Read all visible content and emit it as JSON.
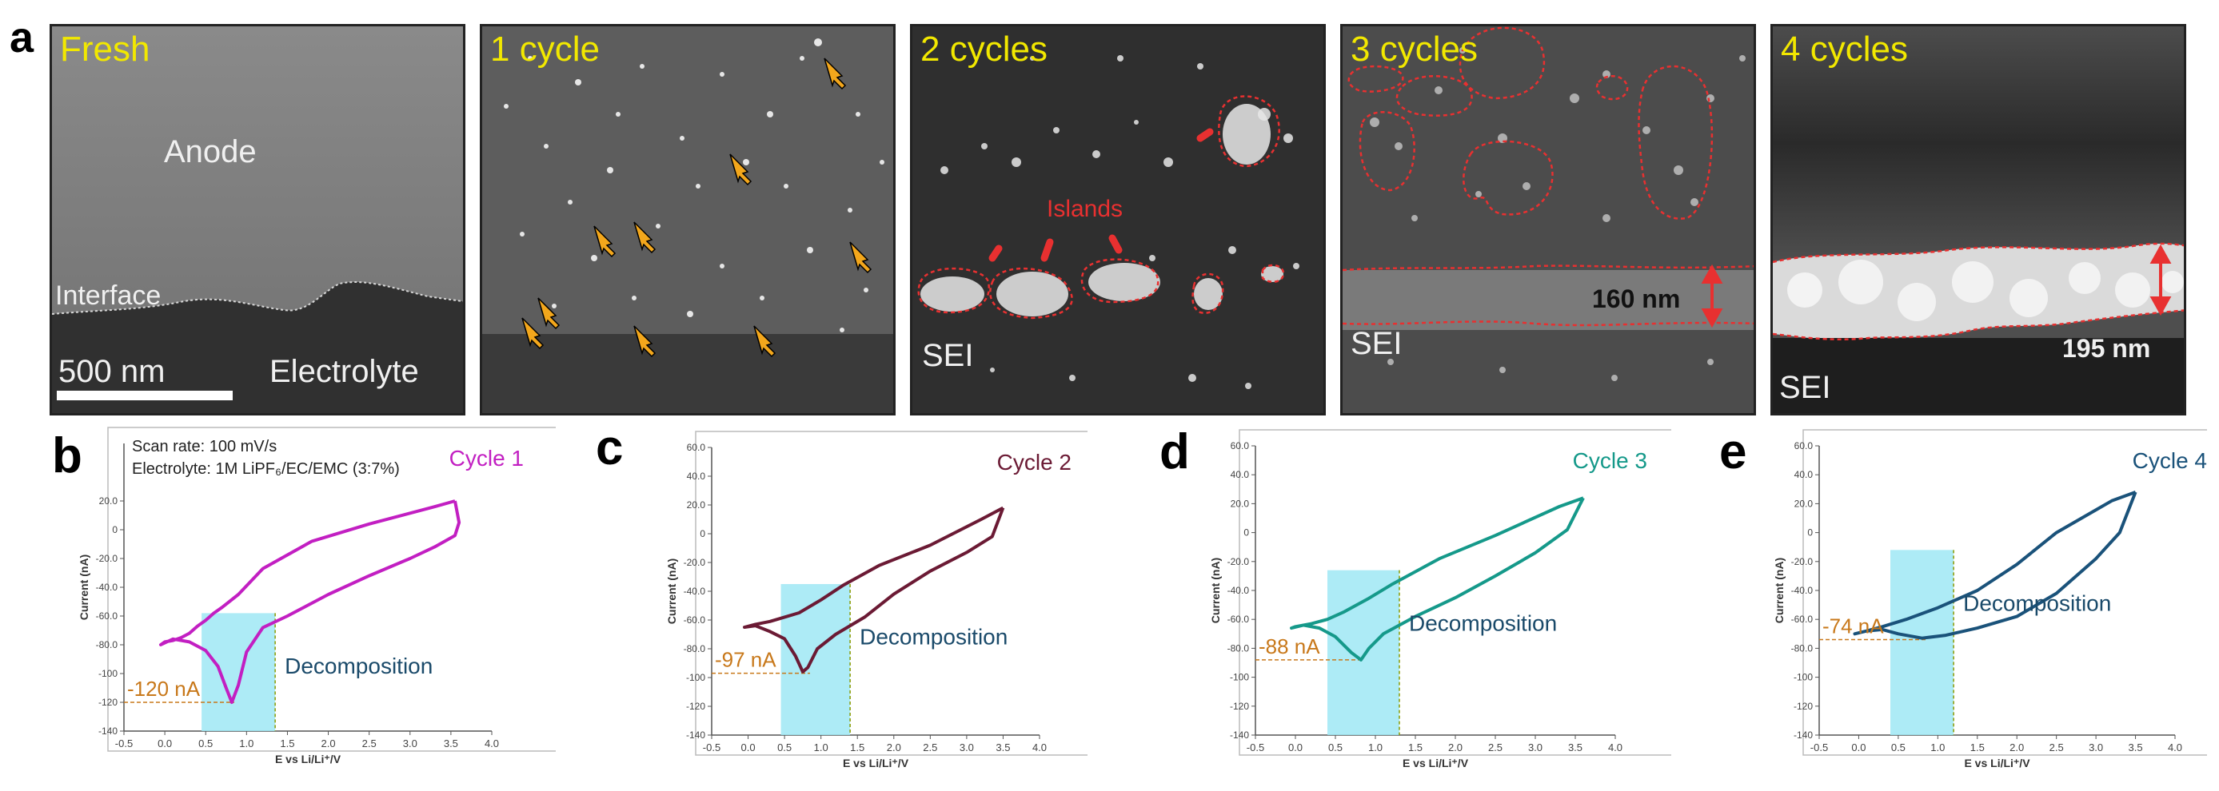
{
  "figure": {
    "panel_a_label": "a",
    "panel_b_label": "b",
    "panel_c_label": "c",
    "panel_d_label": "d",
    "panel_e_label": "e"
  },
  "tem_panels": [
    {
      "title": "Fresh",
      "anode": "Anode",
      "interface": "Interface",
      "electrolyte": "Electrolyte",
      "scale": "500 nm"
    },
    {
      "title": "1 cycle"
    },
    {
      "title": "2 cycles",
      "islands": "Islands",
      "sei": "SEI"
    },
    {
      "title": "3 cycles",
      "sei": "SEI",
      "thickness": "160 nm"
    },
    {
      "title": "4 cycles",
      "sei": "SEI",
      "thickness": "195 nm"
    }
  ],
  "colors": {
    "cycle1": "#c21fc2",
    "cycle2": "#6b1a34",
    "cycle3": "#15998a",
    "cycle4": "#1a527a",
    "shade": "#9fe8f5",
    "annot": "#c8781a",
    "marker": "#e83030",
    "arrow": "#f3a71c",
    "title": "#f2e800"
  },
  "chart_data": [
    {
      "type": "line",
      "title": "Cycle 1",
      "xlabel": "E vs Li/Li⁺/V",
      "ylabel": "Current (nA)",
      "xlim": [
        -0.5,
        4.0
      ],
      "ylim": [
        -140,
        60
      ],
      "x_ticks": [
        "-0.5",
        "0.0",
        "0.5",
        "1.0",
        "1.5",
        "2.0",
        "2.5",
        "3.0",
        "3.5",
        "4.0"
      ],
      "y_ticks": [
        "20.0",
        "0",
        "-20.0",
        "-40.0",
        "-60.0",
        "-80.0",
        "-100",
        "-120",
        "-140"
      ],
      "scan_rate": "Scan rate: 100 mV/s",
      "electrolyte": "Electrolyte: 1M LiPF₆/EC/EMC (3:7%)",
      "peak_label": "-120 nA",
      "region_label": "Decomposition",
      "region": [
        0.45,
        1.35
      ],
      "peak_y": -120,
      "loop": [
        [
          3.55,
          20
        ],
        [
          3.3,
          16
        ],
        [
          2.5,
          4
        ],
        [
          1.8,
          -8
        ],
        [
          1.2,
          -27
        ],
        [
          0.9,
          -45
        ],
        [
          0.7,
          -54
        ],
        [
          0.6,
          -58
        ],
        [
          0.5,
          -63
        ],
        [
          0.4,
          -67
        ],
        [
          0.3,
          -72
        ],
        [
          0.2,
          -75
        ],
        [
          0.1,
          -77
        ],
        [
          0.0,
          -78
        ],
        [
          -0.05,
          -80
        ],
        [
          0.1,
          -76
        ],
        [
          0.3,
          -78
        ],
        [
          0.5,
          -84
        ],
        [
          0.65,
          -95
        ],
        [
          0.75,
          -110
        ],
        [
          0.82,
          -120
        ],
        [
          0.9,
          -108
        ],
        [
          1.0,
          -85
        ],
        [
          1.2,
          -68
        ],
        [
          1.5,
          -60
        ],
        [
          2.0,
          -45
        ],
        [
          2.5,
          -32
        ],
        [
          3.0,
          -20
        ],
        [
          3.3,
          -12
        ],
        [
          3.55,
          -4
        ],
        [
          3.6,
          5
        ],
        [
          3.55,
          20
        ]
      ]
    },
    {
      "type": "line",
      "title": "Cycle 2",
      "xlabel": "E vs Li/Li⁺/V",
      "ylabel": "Current (nA)",
      "xlim": [
        -0.5,
        4.0
      ],
      "ylim": [
        -140,
        60
      ],
      "x_ticks": [
        "-0.5",
        "0.0",
        "0.5",
        "1.0",
        "1.5",
        "2.0",
        "2.5",
        "3.0",
        "3.5",
        "4.0"
      ],
      "y_ticks": [
        "60.0",
        "40.0",
        "20.0",
        "0",
        "-20.0",
        "-40.0",
        "-60.0",
        "-80.0",
        "-100",
        "-120",
        "-140"
      ],
      "peak_label": "-97 nA",
      "region_label": "Decomposition",
      "region": [
        0.45,
        1.4
      ],
      "peak_y": -97,
      "loop": [
        [
          3.5,
          18
        ],
        [
          3.2,
          10
        ],
        [
          2.5,
          -8
        ],
        [
          1.8,
          -22
        ],
        [
          1.3,
          -36
        ],
        [
          1.0,
          -46
        ],
        [
          0.7,
          -55
        ],
        [
          0.5,
          -58
        ],
        [
          0.3,
          -61
        ],
        [
          0.1,
          -63
        ],
        [
          -0.05,
          -65
        ],
        [
          0.1,
          -64
        ],
        [
          0.3,
          -68
        ],
        [
          0.5,
          -73
        ],
        [
          0.65,
          -85
        ],
        [
          0.75,
          -96
        ],
        [
          0.82,
          -93
        ],
        [
          0.95,
          -80
        ],
        [
          1.2,
          -70
        ],
        [
          1.6,
          -58
        ],
        [
          2.0,
          -42
        ],
        [
          2.5,
          -26
        ],
        [
          3.0,
          -13
        ],
        [
          3.35,
          -2
        ],
        [
          3.5,
          18
        ]
      ]
    },
    {
      "type": "line",
      "title": "Cycle 3",
      "xlabel": "E vs Li/Li⁺/V",
      "ylabel": "Current (nA)",
      "xlim": [
        -0.5,
        4.0
      ],
      "ylim": [
        -140,
        60
      ],
      "x_ticks": [
        "-0.5",
        "0.0",
        "0.5",
        "1.0",
        "1.5",
        "2.0",
        "2.5",
        "3.0",
        "3.5",
        "4.0"
      ],
      "y_ticks": [
        "60.0",
        "40.0",
        "20.0",
        "0",
        "-20.0",
        "-40.0",
        "-60.0",
        "-80.0",
        "-100",
        "-120",
        "-140"
      ],
      "peak_label": "-88 nA",
      "region_label": "Decomposition",
      "region": [
        0.4,
        1.3
      ],
      "peak_y": -88,
      "loop": [
        [
          3.6,
          24
        ],
        [
          3.3,
          18
        ],
        [
          2.5,
          -2
        ],
        [
          1.8,
          -18
        ],
        [
          1.2,
          -36
        ],
        [
          0.9,
          -46
        ],
        [
          0.6,
          -55
        ],
        [
          0.4,
          -60
        ],
        [
          0.2,
          -63
        ],
        [
          0.0,
          -65
        ],
        [
          -0.05,
          -66
        ],
        [
          0.1,
          -64
        ],
        [
          0.3,
          -66
        ],
        [
          0.5,
          -72
        ],
        [
          0.7,
          -83
        ],
        [
          0.82,
          -88
        ],
        [
          0.92,
          -80
        ],
        [
          1.1,
          -70
        ],
        [
          1.5,
          -58
        ],
        [
          2.0,
          -45
        ],
        [
          2.5,
          -30
        ],
        [
          3.0,
          -14
        ],
        [
          3.4,
          2
        ],
        [
          3.6,
          24
        ]
      ]
    },
    {
      "type": "line",
      "title": "Cycle 4",
      "xlabel": "E vs Li/Li⁺/V",
      "ylabel": "Current (nA)",
      "xlim": [
        -0.5,
        4.0
      ],
      "ylim": [
        -140,
        60
      ],
      "x_ticks": [
        "-0.5",
        "0.0",
        "0.5",
        "1.0",
        "1.5",
        "2.0",
        "2.5",
        "3.0",
        "3.5",
        "4.0"
      ],
      "y_ticks": [
        "60.0",
        "40.0",
        "20.0",
        "0",
        "-20.0",
        "-40.0",
        "-60.0",
        "-80.0",
        "-100",
        "-120",
        "-140"
      ],
      "peak_label": "-74 nA",
      "region_label": "Decomposition",
      "region": [
        0.4,
        1.2
      ],
      "peak_y": -74,
      "loop": [
        [
          3.5,
          28
        ],
        [
          3.2,
          22
        ],
        [
          2.5,
          0
        ],
        [
          2.0,
          -22
        ],
        [
          1.5,
          -40
        ],
        [
          1.0,
          -52
        ],
        [
          0.6,
          -60
        ],
        [
          0.3,
          -65
        ],
        [
          0.1,
          -68
        ],
        [
          -0.05,
          -70
        ],
        [
          0.1,
          -68
        ],
        [
          0.3,
          -67
        ],
        [
          0.5,
          -70
        ],
        [
          0.8,
          -73
        ],
        [
          1.1,
          -71
        ],
        [
          1.5,
          -66
        ],
        [
          2.0,
          -58
        ],
        [
          2.5,
          -42
        ],
        [
          3.0,
          -18
        ],
        [
          3.3,
          0
        ],
        [
          3.5,
          28
        ]
      ]
    }
  ]
}
